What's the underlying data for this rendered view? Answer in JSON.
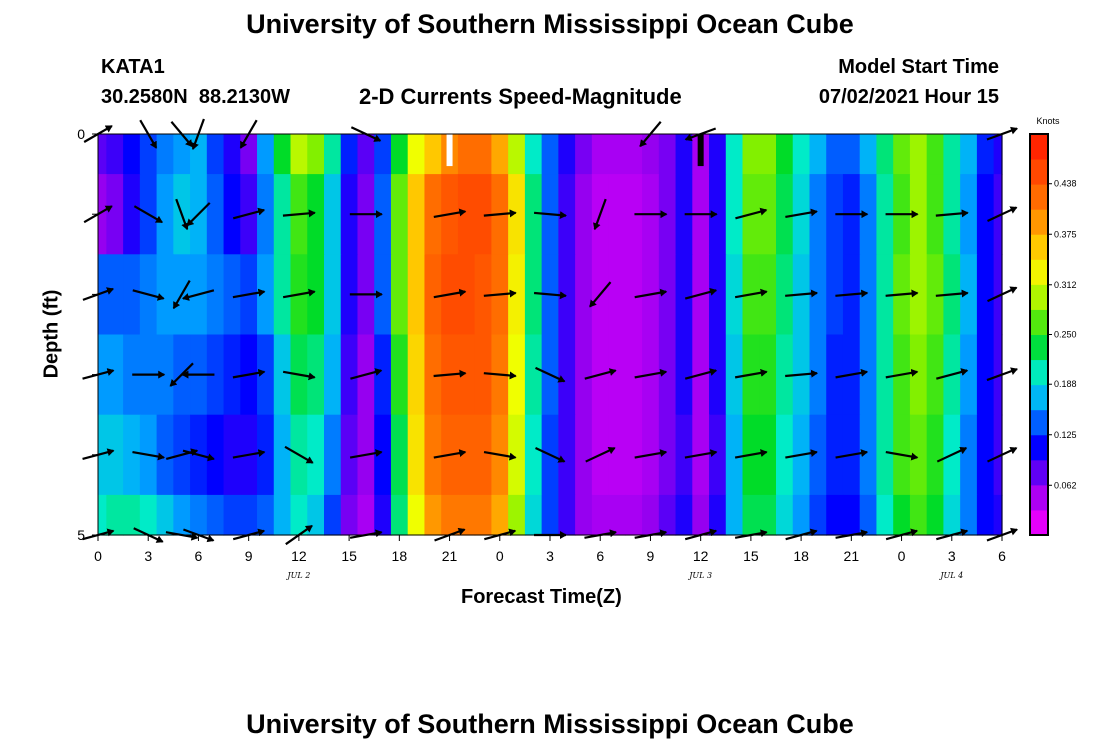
{
  "page": {
    "title_top": "University of Southern Mississippi Ocean Cube",
    "title_bottom": "University of Southern Mississippi Ocean Cube",
    "station_id": "KATA1",
    "station_coords": "30.2580N  88.2130W",
    "model_start_label": "Model Start Time",
    "model_start_value": "07/02/2021 Hour 15"
  },
  "colors": {
    "background": "#ffffff",
    "arrow": "#000000",
    "gap_white": "#ffffff",
    "gap_black": "#000000"
  },
  "chart_data": {
    "type": "heatmap",
    "title": "2-D Currents Speed-Magnitude",
    "xlabel": "Forecast Time(Z)",
    "ylabel": "Depth (ft)",
    "xlim": [
      0,
      54
    ],
    "ylim": [
      0,
      5
    ],
    "x_ticks": [
      0,
      3,
      6,
      9,
      12,
      15,
      18,
      21,
      24,
      27,
      30,
      33,
      36,
      39,
      42,
      45,
      48,
      51,
      54
    ],
    "x_tick_labels": [
      "0",
      "3",
      "6",
      "9",
      "12",
      "15",
      "18",
      "21",
      "0",
      "3",
      "6",
      "9",
      "12",
      "15",
      "18",
      "21",
      "0",
      "3",
      "6"
    ],
    "y_ticks": [
      0,
      1,
      2,
      3,
      4,
      5
    ],
    "y_tick_labels": [
      "0",
      "",
      "",
      "",
      "",
      "5"
    ],
    "date_labels": [
      {
        "x": 12,
        "text": "JUL 2"
      },
      {
        "x": 36,
        "text": "JUL 3"
      },
      {
        "x": 51,
        "text": "JUL 4"
      }
    ],
    "colorbar": {
      "units": "Knots",
      "min": 0.0,
      "max": 0.5,
      "tick_values": [
        0.062,
        0.125,
        0.188,
        0.25,
        0.312,
        0.375,
        0.438
      ],
      "tick_labels": [
        "0.062",
        "0.125",
        "0.188",
        "0.250",
        "0.312",
        "0.375",
        "0.438"
      ],
      "levels": 16
    },
    "layers": [
      "0.0-0.5",
      "0.5-1.5",
      "1.5-2.5",
      "2.5-3.5",
      "3.5-4.5",
      "4.5-5.0"
    ],
    "speed": {
      "times": [
        0,
        1,
        2,
        3,
        4,
        5,
        6,
        7,
        8,
        9,
        10,
        11,
        12,
        13,
        14,
        15,
        16,
        17,
        18,
        19,
        20,
        21,
        22,
        23,
        24,
        25,
        26,
        27,
        28,
        29,
        30,
        31,
        32,
        33,
        34,
        35,
        36,
        37,
        38,
        39,
        40,
        41,
        42,
        43,
        44,
        45,
        46,
        47,
        48,
        49,
        50,
        51,
        52,
        53,
        54
      ],
      "values": [
        [
          0.08,
          0.09,
          0.11,
          0.13,
          0.15,
          0.16,
          0.17,
          0.13,
          0.1,
          0.07,
          0.16,
          0.24,
          0.3,
          0.28,
          0.21,
          0.12,
          0.08,
          0.13,
          0.24,
          0.32,
          0.36,
          0.4,
          0.42,
          0.42,
          0.38,
          0.3,
          0.2,
          0.14,
          0.1,
          0.07,
          0.05,
          0.05,
          0.05,
          0.06,
          0.07,
          0.1,
          0.05,
          0.1,
          0.2,
          0.28,
          0.28,
          0.24,
          0.2,
          0.17,
          0.14,
          0.14,
          0.17,
          0.22,
          0.27,
          0.29,
          0.26,
          0.21,
          0.17,
          0.12,
          0.1
        ],
        [
          0.06,
          0.07,
          0.1,
          0.13,
          0.16,
          0.18,
          0.17,
          0.14,
          0.11,
          0.09,
          0.15,
          0.21,
          0.26,
          0.24,
          0.18,
          0.1,
          0.07,
          0.14,
          0.27,
          0.36,
          0.42,
          0.44,
          0.45,
          0.45,
          0.42,
          0.34,
          0.22,
          0.14,
          0.09,
          0.06,
          0.04,
          0.04,
          0.04,
          0.05,
          0.07,
          0.1,
          0.05,
          0.1,
          0.2,
          0.27,
          0.27,
          0.23,
          0.19,
          0.15,
          0.13,
          0.12,
          0.15,
          0.21,
          0.26,
          0.29,
          0.26,
          0.21,
          0.16,
          0.11,
          0.09
        ],
        [
          0.14,
          0.14,
          0.14,
          0.15,
          0.16,
          0.16,
          0.16,
          0.15,
          0.14,
          0.13,
          0.16,
          0.21,
          0.25,
          0.24,
          0.18,
          0.1,
          0.07,
          0.14,
          0.27,
          0.36,
          0.43,
          0.45,
          0.45,
          0.44,
          0.42,
          0.33,
          0.22,
          0.14,
          0.09,
          0.06,
          0.04,
          0.04,
          0.04,
          0.05,
          0.07,
          0.1,
          0.05,
          0.1,
          0.19,
          0.26,
          0.26,
          0.22,
          0.18,
          0.15,
          0.13,
          0.12,
          0.15,
          0.21,
          0.27,
          0.29,
          0.27,
          0.22,
          0.17,
          0.11,
          0.09
        ],
        [
          0.16,
          0.16,
          0.15,
          0.15,
          0.15,
          0.14,
          0.14,
          0.13,
          0.12,
          0.11,
          0.13,
          0.18,
          0.23,
          0.22,
          0.17,
          0.09,
          0.06,
          0.12,
          0.25,
          0.35,
          0.42,
          0.44,
          0.44,
          0.44,
          0.41,
          0.32,
          0.21,
          0.14,
          0.09,
          0.06,
          0.04,
          0.04,
          0.04,
          0.05,
          0.07,
          0.1,
          0.05,
          0.1,
          0.18,
          0.25,
          0.25,
          0.21,
          0.18,
          0.15,
          0.12,
          0.12,
          0.15,
          0.21,
          0.26,
          0.28,
          0.26,
          0.21,
          0.16,
          0.11,
          0.09
        ],
        [
          0.18,
          0.18,
          0.17,
          0.16,
          0.14,
          0.13,
          0.12,
          0.11,
          0.1,
          0.1,
          0.12,
          0.17,
          0.21,
          0.2,
          0.15,
          0.08,
          0.06,
          0.11,
          0.23,
          0.34,
          0.41,
          0.43,
          0.43,
          0.43,
          0.4,
          0.31,
          0.2,
          0.13,
          0.09,
          0.06,
          0.04,
          0.04,
          0.04,
          0.05,
          0.07,
          0.09,
          0.05,
          0.09,
          0.17,
          0.24,
          0.24,
          0.2,
          0.17,
          0.14,
          0.12,
          0.12,
          0.15,
          0.21,
          0.26,
          0.27,
          0.25,
          0.2,
          0.15,
          0.11,
          0.09
        ],
        [
          0.2,
          0.21,
          0.21,
          0.2,
          0.18,
          0.16,
          0.15,
          0.14,
          0.13,
          0.13,
          0.14,
          0.17,
          0.2,
          0.18,
          0.13,
          0.07,
          0.05,
          0.1,
          0.22,
          0.32,
          0.39,
          0.41,
          0.41,
          0.41,
          0.38,
          0.29,
          0.19,
          0.13,
          0.09,
          0.06,
          0.05,
          0.05,
          0.05,
          0.06,
          0.08,
          0.1,
          0.06,
          0.1,
          0.17,
          0.23,
          0.23,
          0.19,
          0.16,
          0.13,
          0.11,
          0.11,
          0.14,
          0.2,
          0.24,
          0.26,
          0.24,
          0.19,
          0.15,
          0.11,
          0.1
        ]
      ],
      "missing_gaps": [
        {
          "x": 21,
          "layer": 0,
          "color": "white"
        },
        {
          "x": 36,
          "layer": 0,
          "color": "black"
        }
      ]
    },
    "vectors": {
      "times": [
        0,
        3,
        5,
        6,
        9,
        12,
        16,
        21,
        24,
        27,
        30,
        33,
        36,
        39,
        42,
        45,
        48,
        51,
        54
      ],
      "direction_deg": [
        [
          60,
          150,
          140,
          200,
          210,
          null,
          115,
          null,
          null,
          null,
          null,
          220,
          250,
          null,
          null,
          null,
          null,
          null,
          70
        ],
        [
          60,
          120,
          160,
          225,
          75,
          85,
          90,
          80,
          85,
          95,
          200,
          90,
          90,
          75,
          80,
          90,
          90,
          85,
          65
        ],
        [
          70,
          105,
          210,
          255,
          80,
          80,
          90,
          80,
          85,
          95,
          220,
          80,
          75,
          80,
          85,
          85,
          85,
          85,
          65
        ],
        [
          75,
          90,
          225,
          270,
          80,
          100,
          75,
          85,
          95,
          115,
          75,
          80,
          75,
          80,
          85,
          80,
          80,
          75,
          70
        ],
        [
          75,
          100,
          75,
          105,
          80,
          120,
          80,
          80,
          100,
          115,
          65,
          80,
          80,
          80,
          80,
          80,
          100,
          65,
          65
        ],
        [
          75,
          115,
          100,
          110,
          75,
          55,
          80,
          70,
          75,
          90,
          80,
          80,
          75,
          80,
          75,
          80,
          75,
          75,
          70
        ]
      ]
    }
  }
}
